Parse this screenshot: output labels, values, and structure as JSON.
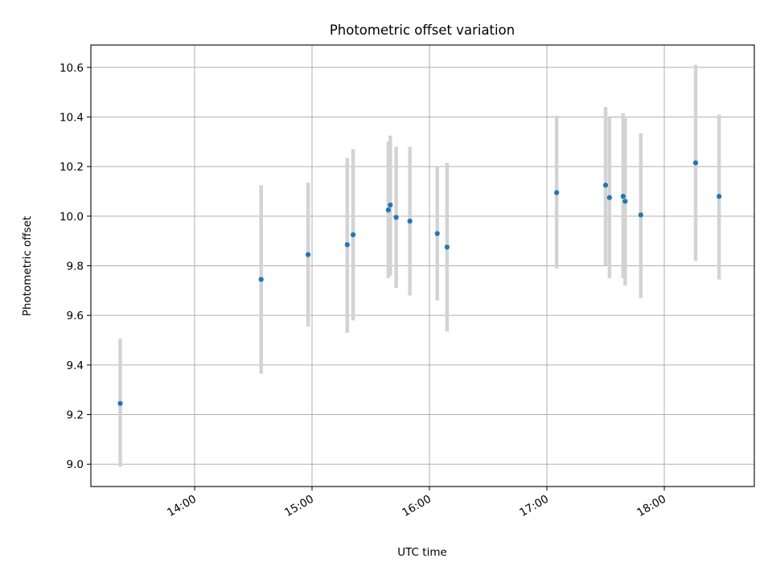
{
  "chart_data": {
    "type": "scatter",
    "title": "Photometric offset variation",
    "xlabel": "UTC time",
    "ylabel": "Photometric offset",
    "x_is_time": true,
    "xlim": [
      "13:07",
      "18:46"
    ],
    "ylim": [
      8.91,
      10.69
    ],
    "x_ticks": [
      "14:00",
      "15:00",
      "16:00",
      "17:00",
      "18:00"
    ],
    "y_ticks": [
      9.0,
      9.2,
      9.4,
      9.6,
      9.8,
      10.0,
      10.2,
      10.4,
      10.6
    ],
    "y_tick_labels": [
      "9.0",
      "9.2",
      "9.4",
      "9.6",
      "9.8",
      "10.0",
      "10.2",
      "10.4",
      "10.6"
    ],
    "grid": true,
    "marker_color": "#1f77b4",
    "errorbar_color": "#d3d3d3",
    "series": [
      {
        "points": [
          {
            "t": "13:22",
            "y": 9.245,
            "lo": 8.99,
            "hi": 9.505
          },
          {
            "t": "14:34",
            "y": 9.745,
            "lo": 9.365,
            "hi": 10.125
          },
          {
            "t": "14:58",
            "y": 9.845,
            "lo": 9.555,
            "hi": 10.135
          },
          {
            "t": "15:18",
            "y": 9.885,
            "lo": 9.53,
            "hi": 10.235
          },
          {
            "t": "15:21",
            "y": 9.925,
            "lo": 9.58,
            "hi": 10.27
          },
          {
            "t": "15:39",
            "y": 10.025,
            "lo": 9.75,
            "hi": 10.3
          },
          {
            "t": "15:40",
            "y": 10.045,
            "lo": 9.76,
            "hi": 10.325
          },
          {
            "t": "15:43",
            "y": 9.995,
            "lo": 9.71,
            "hi": 10.28
          },
          {
            "t": "15:50",
            "y": 9.98,
            "lo": 9.68,
            "hi": 10.28
          },
          {
            "t": "16:04",
            "y": 9.93,
            "lo": 9.66,
            "hi": 10.2
          },
          {
            "t": "16:09",
            "y": 9.875,
            "lo": 9.535,
            "hi": 10.215
          },
          {
            "t": "17:05",
            "y": 10.095,
            "lo": 9.79,
            "hi": 10.405
          },
          {
            "t": "17:30",
            "y": 10.125,
            "lo": 9.8,
            "hi": 10.44
          },
          {
            "t": "17:32",
            "y": 10.075,
            "lo": 9.75,
            "hi": 10.4
          },
          {
            "t": "17:39",
            "y": 10.08,
            "lo": 9.75,
            "hi": 10.415
          },
          {
            "t": "17:40",
            "y": 10.06,
            "lo": 9.72,
            "hi": 10.395
          },
          {
            "t": "17:48",
            "y": 10.005,
            "lo": 9.67,
            "hi": 10.335
          },
          {
            "t": "18:16",
            "y": 10.215,
            "lo": 9.82,
            "hi": 10.61
          },
          {
            "t": "18:28",
            "y": 10.08,
            "lo": 9.745,
            "hi": 10.41
          }
        ]
      }
    ]
  }
}
